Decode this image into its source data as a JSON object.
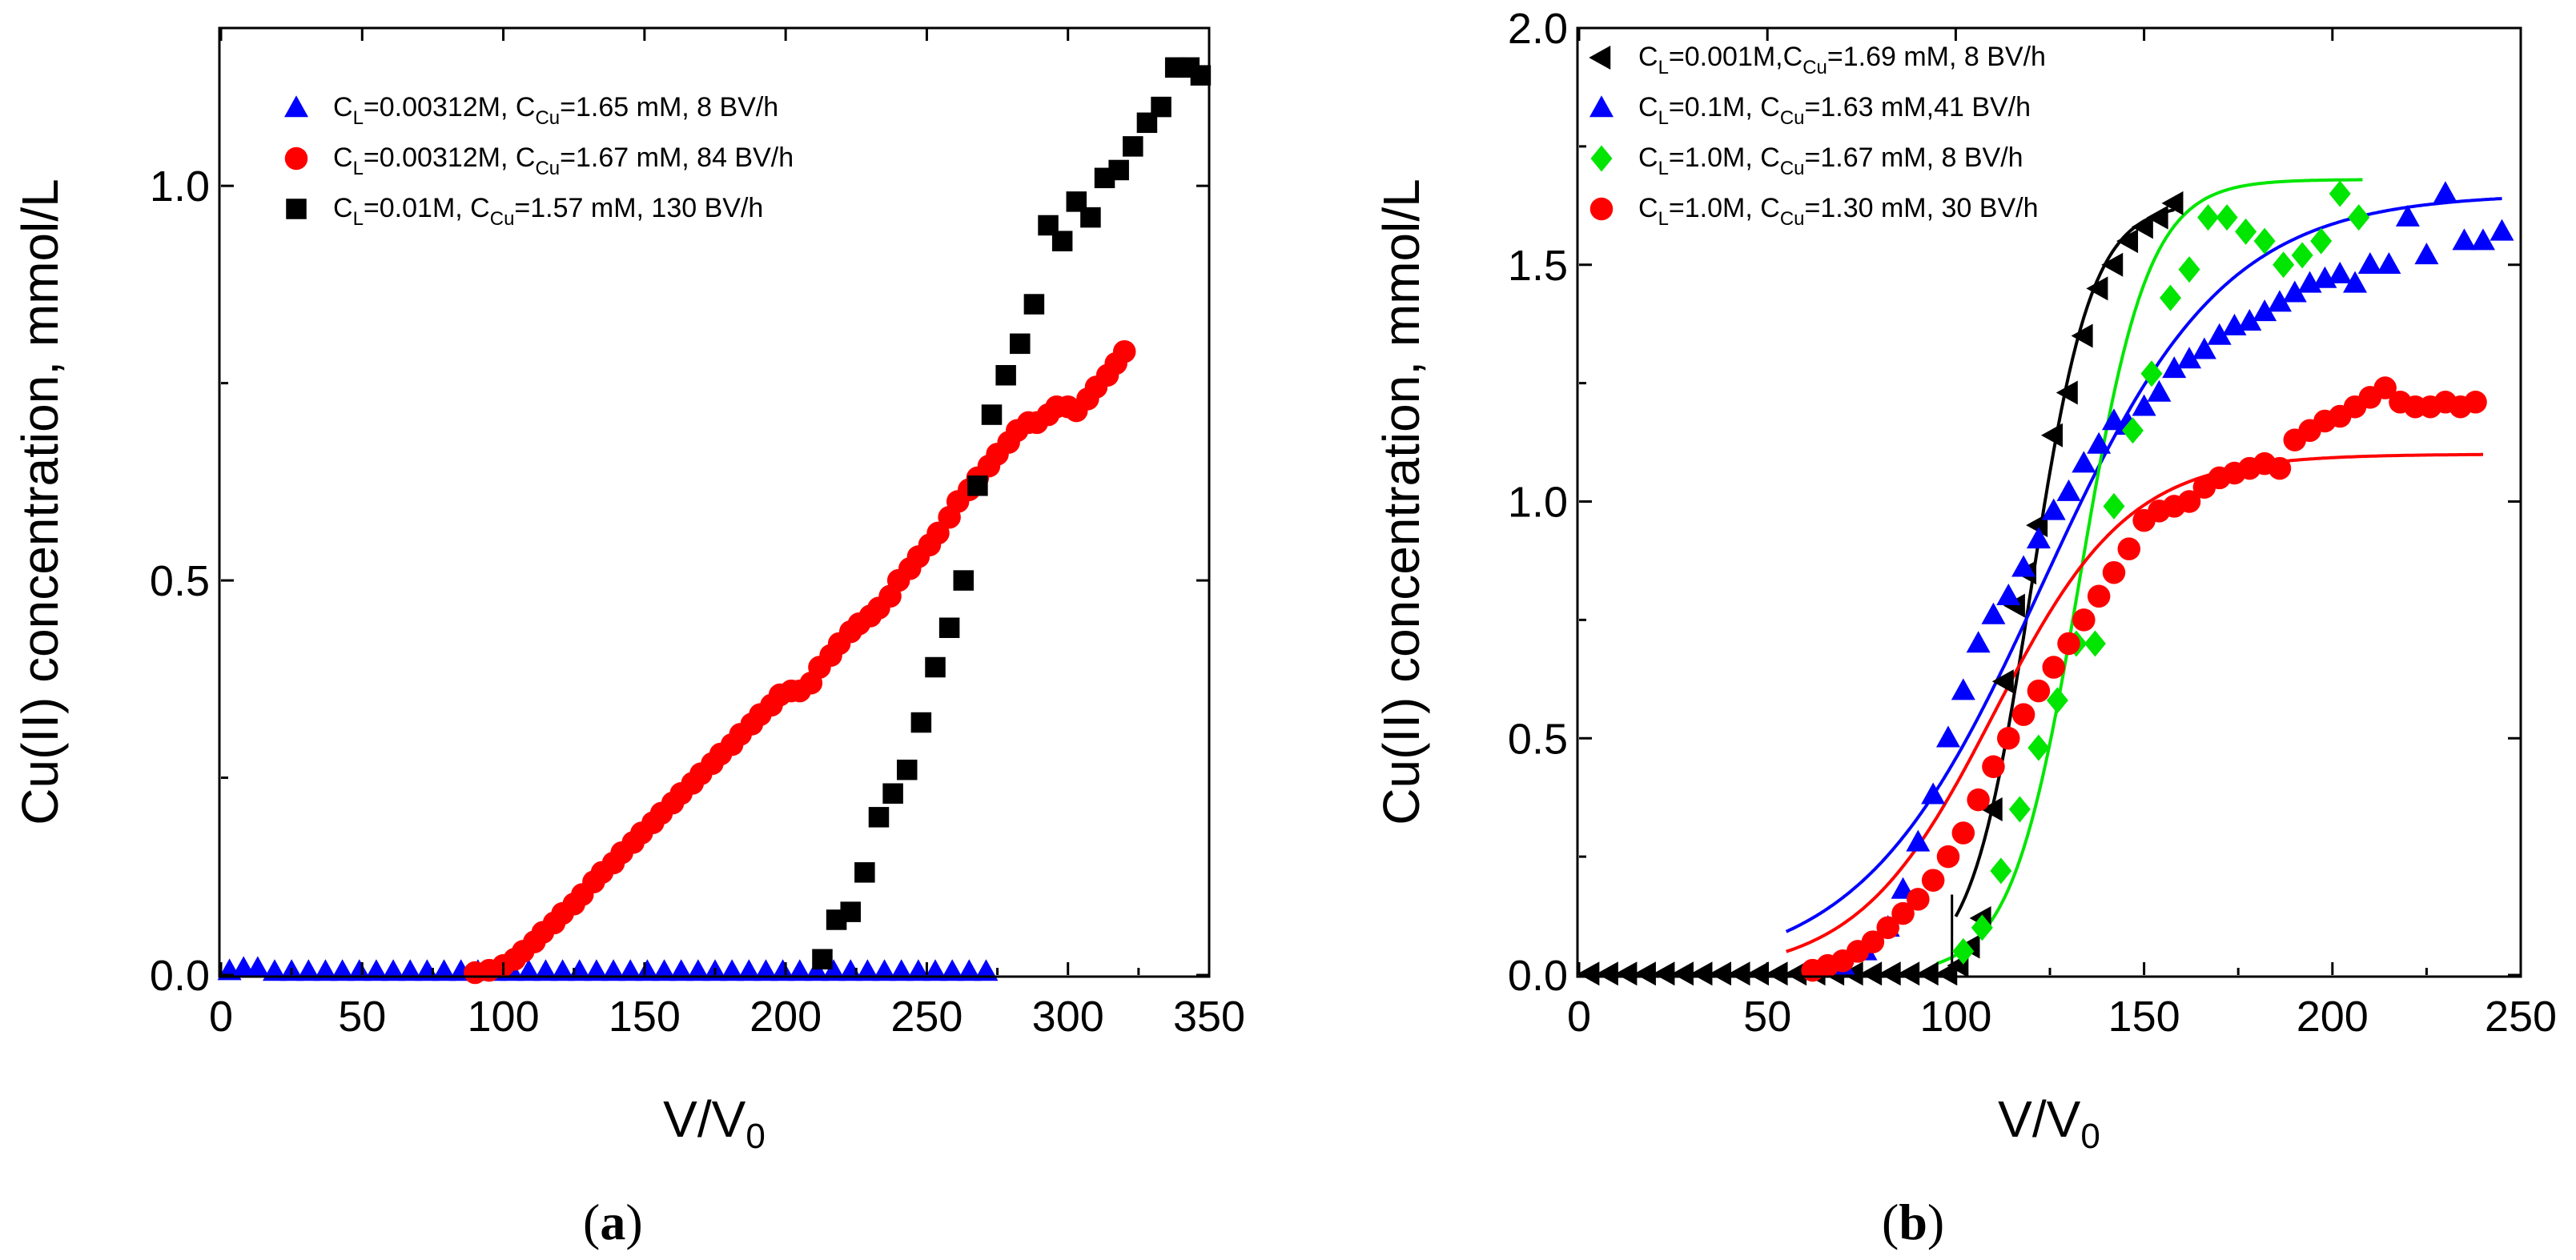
{
  "chart_data": [
    {
      "type": "scatter",
      "panel_label": "(a)",
      "panel_label_parts": [
        "(",
        "a",
        ")"
      ],
      "xlabel": "V/V0",
      "xlabel_parts": [
        "V/V",
        "0"
      ],
      "ylabel": "Cu(II) concentration, mmol/L",
      "xlim": [
        0,
        350
      ],
      "ylim": [
        0,
        1.2
      ],
      "xticks": [
        0,
        50,
        100,
        150,
        200,
        250,
        300,
        350
      ],
      "xtick_labels": [
        "0",
        "50",
        "100",
        "150",
        "200",
        "250",
        "300",
        "350"
      ],
      "yticks": [
        0.0,
        0.5,
        1.0
      ],
      "ytick_labels": [
        "0.0",
        "0.5",
        "1.0"
      ],
      "legend_position": "top-left",
      "series": [
        {
          "name": "CL=0.00312M, CCu=1.65 mM, 8 BV/h",
          "legend_parts": [
            "C",
            "L",
            "=0.00312M, C",
            "Cu",
            "=1.65 mM, 8 BV/h"
          ],
          "marker": "triangle-up",
          "color": "#0000ff",
          "x": [
            3,
            8,
            13,
            19,
            25,
            31,
            37,
            43,
            49,
            55,
            61,
            67,
            73,
            79,
            85,
            91,
            97,
            103,
            109,
            115,
            121,
            127,
            133,
            139,
            145,
            151,
            157,
            163,
            169,
            175,
            181,
            187,
            193,
            199,
            205,
            211,
            217,
            223,
            229,
            235,
            241,
            247,
            253,
            259,
            265,
            271
          ],
          "y": [
            0.005,
            0.008,
            0.008,
            0.004,
            0.004,
            0.004,
            0.004,
            0.004,
            0.004,
            0.004,
            0.004,
            0.004,
            0.004,
            0.004,
            0.004,
            0.004,
            0.004,
            0.004,
            0.004,
            0.004,
            0.004,
            0.004,
            0.004,
            0.004,
            0.004,
            0.004,
            0.004,
            0.004,
            0.004,
            0.004,
            0.004,
            0.004,
            0.004,
            0.004,
            0.004,
            0.004,
            0.004,
            0.004,
            0.004,
            0.004,
            0.004,
            0.004,
            0.004,
            0.004,
            0.004,
            0.004
          ]
        },
        {
          "name": "CL=0.00312M, CCu=1.67 mM, 84 BV/h",
          "legend_parts": [
            "C",
            "L",
            "=0.00312M, C",
            "Cu",
            "=1.67 mM, 84 BV/h"
          ],
          "marker": "circle",
          "color": "#ff0000",
          "x": [
            90,
            95,
            100,
            104,
            107,
            111,
            114,
            118,
            121,
            125,
            128,
            132,
            135,
            139,
            142,
            146,
            149,
            153,
            156,
            160,
            163,
            167,
            170,
            174,
            177,
            181,
            184,
            188,
            191,
            195,
            198,
            202,
            205,
            209,
            212,
            216,
            219,
            223,
            226,
            230,
            233,
            237,
            240,
            244,
            247,
            251,
            254,
            258,
            261,
            265,
            268,
            272,
            275,
            279,
            282,
            286,
            289,
            293,
            296,
            300,
            303,
            307,
            310,
            314,
            317,
            320
          ],
          "y": [
            0.003,
            0.006,
            0.012,
            0.02,
            0.03,
            0.042,
            0.054,
            0.066,
            0.078,
            0.09,
            0.102,
            0.118,
            0.13,
            0.142,
            0.155,
            0.168,
            0.18,
            0.193,
            0.205,
            0.218,
            0.23,
            0.243,
            0.255,
            0.268,
            0.28,
            0.292,
            0.305,
            0.318,
            0.33,
            0.342,
            0.355,
            0.36,
            0.36,
            0.37,
            0.39,
            0.405,
            0.42,
            0.435,
            0.445,
            0.455,
            0.465,
            0.48,
            0.5,
            0.515,
            0.53,
            0.545,
            0.56,
            0.58,
            0.6,
            0.615,
            0.63,
            0.645,
            0.66,
            0.675,
            0.69,
            0.7,
            0.7,
            0.71,
            0.72,
            0.72,
            0.715,
            0.73,
            0.745,
            0.76,
            0.775,
            0.79
          ]
        },
        {
          "name": "CL=0.01M, CCu=1.57 mM, 130 BV/h",
          "legend_parts": [
            "C",
            "L",
            "=0.01M, C",
            "Cu",
            "=1.57 mM, 130 BV/h"
          ],
          "marker": "square",
          "color": "#000000",
          "x": [
            213,
            218,
            223,
            228,
            233,
            238,
            243,
            248,
            253,
            258,
            263,
            268,
            273,
            278,
            283,
            288,
            293,
            298,
            303,
            308,
            313,
            318,
            323,
            328,
            333,
            338,
            343,
            347
          ],
          "y": [
            0.02,
            0.07,
            0.08,
            0.13,
            0.2,
            0.23,
            0.26,
            0.32,
            0.39,
            0.44,
            0.5,
            0.62,
            0.71,
            0.76,
            0.8,
            0.85,
            0.95,
            0.93,
            0.98,
            0.96,
            1.01,
            1.02,
            1.05,
            1.08,
            1.1,
            1.15,
            1.15,
            1.14
          ]
        }
      ]
    },
    {
      "type": "scatter",
      "panel_label": "(b)",
      "panel_label_parts": [
        "(",
        "b",
        ")"
      ],
      "xlabel": "V/V0",
      "xlabel_parts": [
        "V/V",
        "0"
      ],
      "ylabel": "Cu(II) concentration, mmol/L",
      "xlim": [
        0,
        250
      ],
      "ylim": [
        0,
        2.0
      ],
      "xticks": [
        0,
        50,
        100,
        150,
        200,
        250
      ],
      "xtick_labels": [
        "0",
        "50",
        "100",
        "150",
        "200",
        "250"
      ],
      "yticks": [
        0.0,
        0.5,
        1.0,
        1.5,
        2.0
      ],
      "ytick_labels": [
        "0.0",
        "0.5",
        "1.0",
        "1.5",
        "2.0"
      ],
      "legend_position": "top-left",
      "series": [
        {
          "name": "CL=0.001M,CCu=1.69 mM, 8 BV/h",
          "legend_parts": [
            "C",
            "L",
            "=0.001M,C",
            "Cu",
            "=1.69 mM, 8 BV/h"
          ],
          "marker": "triangle-left",
          "color": "#000000",
          "x": [
            3,
            8,
            13,
            18,
            23,
            28,
            33,
            38,
            43,
            48,
            53,
            58,
            63,
            68,
            73,
            78,
            83,
            88,
            93,
            98,
            101,
            104,
            107,
            110,
            113,
            116,
            119,
            122,
            126,
            130,
            134,
            138,
            142,
            146,
            150,
            154,
            158
          ],
          "y": [
            0.003,
            0.003,
            0.003,
            0.003,
            0.003,
            0.003,
            0.003,
            0.003,
            0.003,
            0.003,
            0.003,
            0.003,
            0.003,
            0.003,
            0.003,
            0.003,
            0.003,
            0.003,
            0.003,
            0.003,
            0.02,
            0.06,
            0.12,
            0.35,
            0.62,
            0.78,
            0.85,
            0.95,
            1.14,
            1.23,
            1.35,
            1.45,
            1.5,
            1.55,
            1.58,
            1.6,
            1.63
          ]
        },
        {
          "name": "CL=0.1M, CCu=1.63 mM,41 BV/h",
          "legend_parts": [
            "C",
            "L",
            "=0.1M, C",
            "Cu",
            "=1.63 mM,41 BV/h"
          ],
          "marker": "triangle-up",
          "color": "#0000ff",
          "x": [
            70,
            76,
            82,
            86,
            90,
            94,
            98,
            102,
            106,
            110,
            114,
            118,
            122,
            126,
            130,
            134,
            138,
            142,
            146,
            150,
            154,
            158,
            162,
            166,
            170,
            174,
            178,
            182,
            186,
            190,
            194,
            198,
            202,
            206,
            210,
            215,
            220,
            225,
            230,
            235,
            240,
            245
          ],
          "y": [
            0.02,
            0.05,
            0.1,
            0.18,
            0.28,
            0.38,
            0.5,
            0.6,
            0.7,
            0.76,
            0.8,
            0.86,
            0.92,
            0.98,
            1.02,
            1.08,
            1.12,
            1.17,
            1.16,
            1.2,
            1.23,
            1.28,
            1.3,
            1.32,
            1.35,
            1.37,
            1.38,
            1.4,
            1.42,
            1.44,
            1.46,
            1.47,
            1.48,
            1.46,
            1.5,
            1.5,
            1.6,
            1.52,
            1.65,
            1.55,
            1.55,
            1.57
          ]
        },
        {
          "name": "CL=1.0M, CCu=1.67 mM, 8 BV/h",
          "legend_parts": [
            "C",
            "L",
            "=1.0M, C",
            "Cu",
            "=1.67 mM, 8 BV/h"
          ],
          "marker": "diamond",
          "color": "#00e600",
          "x": [
            102,
            107,
            112,
            117,
            122,
            127,
            132,
            137,
            142,
            147,
            152,
            157,
            162,
            167,
            172,
            177,
            182,
            187,
            192,
            197,
            202,
            207
          ],
          "y": [
            0.05,
            0.1,
            0.22,
            0.35,
            0.48,
            0.58,
            0.7,
            0.7,
            0.99,
            1.15,
            1.27,
            1.43,
            1.49,
            1.6,
            1.6,
            1.57,
            1.55,
            1.5,
            1.52,
            1.55,
            1.65,
            1.6
          ]
        },
        {
          "name": "CL=1.0M, CCu=1.30 mM, 30 BV/h",
          "legend_parts": [
            "C",
            "L",
            "=1.0M, C",
            "Cu",
            "=1.30 mM, 30 BV/h"
          ],
          "marker": "circle",
          "color": "#ff0000",
          "x": [
            62,
            66,
            70,
            74,
            78,
            82,
            86,
            90,
            94,
            98,
            102,
            106,
            110,
            114,
            118,
            122,
            126,
            130,
            134,
            138,
            142,
            146,
            150,
            154,
            158,
            162,
            166,
            170,
            174,
            178,
            182,
            186,
            190,
            194,
            198,
            202,
            206,
            210,
            214,
            218,
            222,
            226,
            230,
            234,
            238
          ],
          "y": [
            0.01,
            0.02,
            0.03,
            0.05,
            0.07,
            0.1,
            0.13,
            0.16,
            0.2,
            0.25,
            0.3,
            0.37,
            0.44,
            0.5,
            0.55,
            0.6,
            0.65,
            0.7,
            0.75,
            0.8,
            0.85,
            0.9,
            0.96,
            0.98,
            0.99,
            1.0,
            1.03,
            1.05,
            1.06,
            1.07,
            1.08,
            1.07,
            1.13,
            1.15,
            1.17,
            1.18,
            1.2,
            1.22,
            1.24,
            1.21,
            1.2,
            1.2,
            1.21,
            1.2,
            1.21
          ]
        }
      ],
      "fit_curves": [
        {
          "name": "fit-black",
          "color": "#000000",
          "model": "sigmoid",
          "max": 1.63,
          "center": 120,
          "width": 8,
          "x_start": 100,
          "x_end": 158
        },
        {
          "name": "fit-blue",
          "color": "#0000ff",
          "model": "sigmoid",
          "max": 1.65,
          "center": 123,
          "width": 24,
          "x_start": 55,
          "x_end": 245
        },
        {
          "name": "fit-green",
          "color": "#00e600",
          "model": "sigmoid",
          "max": 1.68,
          "center": 133,
          "width": 9,
          "x_start": 95,
          "x_end": 208
        },
        {
          "name": "fit-red",
          "color": "#ff0000",
          "model": "sigmoid",
          "max": 1.1,
          "center": 110,
          "width": 18,
          "x_start": 55,
          "x_end": 240
        }
      ]
    }
  ]
}
